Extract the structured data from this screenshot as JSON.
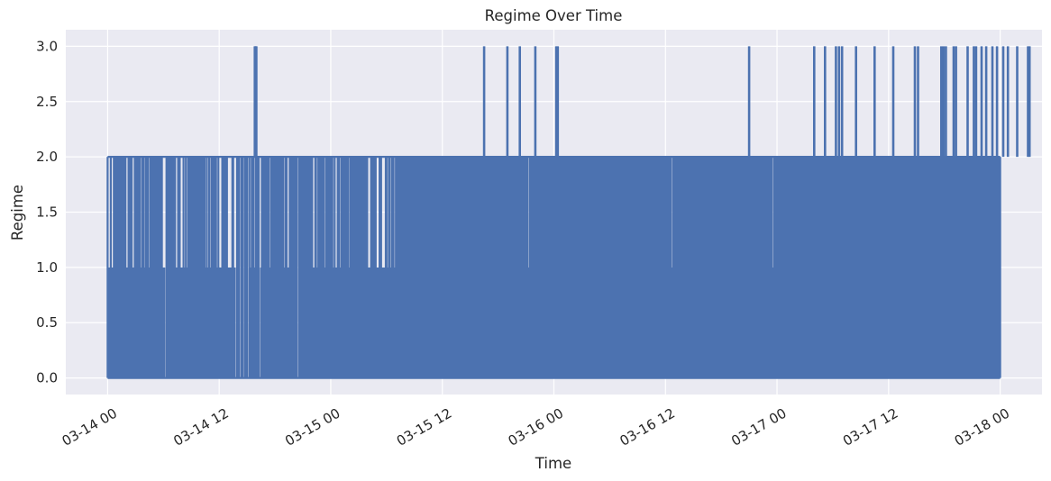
{
  "chart_data": {
    "type": "line",
    "title": "Regime Over Time",
    "xlabel": "Time",
    "ylabel": "Regime",
    "grid": true,
    "legend": "none",
    "x_range": [
      "2024-03-13T19:30",
      "2024-03-18T04:30"
    ],
    "ylim": [
      -0.15,
      3.15
    ],
    "x_ticks": [
      {
        "label": "03-14 00",
        "t": "2024-03-14T00:00"
      },
      {
        "label": "03-14 12",
        "t": "2024-03-14T12:00"
      },
      {
        "label": "03-15 00",
        "t": "2024-03-15T00:00"
      },
      {
        "label": "03-15 12",
        "t": "2024-03-15T12:00"
      },
      {
        "label": "03-16 00",
        "t": "2024-03-16T00:00"
      },
      {
        "label": "03-16 12",
        "t": "2024-03-16T12:00"
      },
      {
        "label": "03-17 00",
        "t": "2024-03-17T00:00"
      },
      {
        "label": "03-17 12",
        "t": "2024-03-17T12:00"
      },
      {
        "label": "03-18 00",
        "t": "2024-03-18T00:00"
      }
    ],
    "y_ticks": [
      {
        "label": "0.0",
        "v": 0.0
      },
      {
        "label": "0.5",
        "v": 0.5
      },
      {
        "label": "1.0",
        "v": 1.0
      },
      {
        "label": "1.5",
        "v": 1.5
      },
      {
        "label": "2.0",
        "v": 2.0
      },
      {
        "label": "2.5",
        "v": 2.5
      },
      {
        "label": "3.0",
        "v": 3.0
      }
    ],
    "series": [
      {
        "color": "#4c72b0",
        "x_start": "2024-03-14T00:00",
        "x_end": "2024-03-18T00:00",
        "values_description_free": true,
        "phases": [
          {
            "from": "2024-03-14T00:00",
            "to": "2024-03-14T22:00",
            "levels": [
              0,
              1,
              2
            ]
          },
          {
            "from": "2024-03-14T22:00",
            "to": "2024-03-15T07:00",
            "levels": [
              0,
              1,
              2
            ]
          },
          {
            "from": "2024-03-15T07:00",
            "to": "2024-03-18T00:00",
            "levels": [
              0,
              1,
              2
            ]
          }
        ],
        "spikes_to_3": [
          "2024-03-14T15:50",
          "2024-03-14T15:55",
          "2024-03-14T16:00",
          "2024-03-15T16:30",
          "2024-03-15T19:00",
          "2024-03-15T20:20",
          "2024-03-15T22:00",
          "2024-03-16T00:15",
          "2024-03-16T00:25",
          "2024-03-16T21:00",
          "2024-03-17T04:00",
          "2024-03-17T05:10",
          "2024-03-17T06:20",
          "2024-03-17T06:40",
          "2024-03-17T07:00",
          "2024-03-17T08:30",
          "2024-03-17T10:30",
          "2024-03-17T12:30",
          "2024-03-17T14:50",
          "2024-03-17T15:10",
          "2024-03-17T17:40",
          "2024-03-17T17:55",
          "2024-03-17T18:10",
          "2024-03-17T19:00",
          "2024-03-17T19:15",
          "2024-03-17T20:30",
          "2024-03-17T21:10",
          "2024-03-17T21:25",
          "2024-03-17T22:00",
          "2024-03-17T22:30",
          "2024-03-17T23:10",
          "2024-03-17T23:40",
          "2024-03-18T00:20",
          "2024-03-18T00:50",
          "2024-03-18T01:50",
          "2024-03-18T03:00",
          "2024-03-18T03:10"
        ]
      }
    ]
  },
  "colors": {
    "background": "#eaeaf2",
    "grid": "#ffffff",
    "series": "#4c72b0",
    "text": "#262626"
  }
}
